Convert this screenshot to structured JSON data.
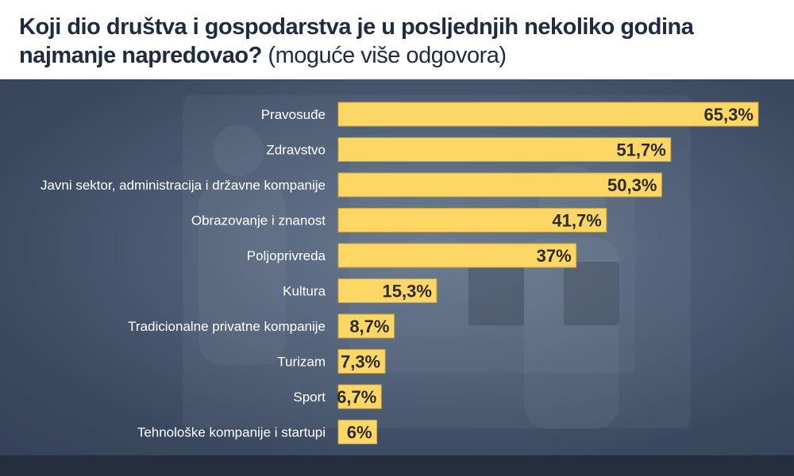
{
  "title": {
    "bold": "Koji dio društva i gospodarstva je u posljednjih nekoliko godina najmanje napredovao?",
    "light": "(moguće više odgovora)"
  },
  "colors": {
    "bar": "#fdd766",
    "bar_stroke": "#caa23a",
    "label_text": "#ffffff",
    "value_text": "#2b2b2b",
    "title_text": "#1f2b3f",
    "panel_bg": "#4b5a72"
  },
  "chart_data": {
    "type": "bar",
    "orientation": "horizontal",
    "categories": [
      "Pravosuđe",
      "Zdravstvo",
      "Javni sektor, administracija i državne kompanije",
      "Obrazovanje i znanost",
      "Poljoprivreda",
      "Kultura",
      "Tradicionalne privatne kompanije",
      "Turizam",
      "Sport",
      "Tehnološke kompanije i startupi"
    ],
    "values": [
      65.3,
      51.7,
      50.3,
      41.7,
      37,
      15.3,
      8.7,
      7.3,
      6.7,
      6
    ],
    "value_labels": [
      "65,3%",
      "51,7%",
      "50,3%",
      "41,7%",
      "37%",
      "15,3%",
      "8,7%",
      "7,3%",
      "6,7%",
      "6%"
    ],
    "xlim": [
      0,
      100
    ],
    "grid": false,
    "legend": "none"
  }
}
